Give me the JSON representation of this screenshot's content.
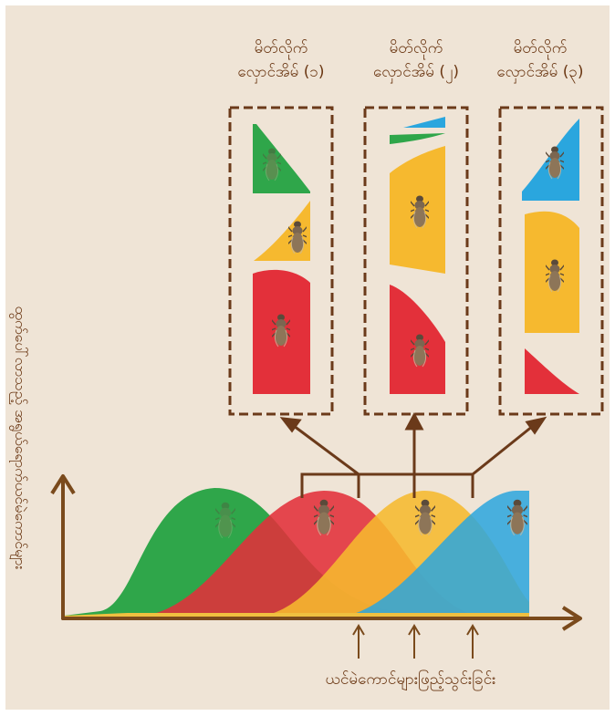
{
  "samples": [
    {
      "line1": "မိတ်လိုက်",
      "line2": "လှောင်အိမ် (၁)"
    },
    {
      "line1": "မိတ်လိုက်",
      "line2": "လှောင်အိမ် (၂)"
    },
    {
      "line1": "မိတ်လိုက်",
      "line2": "လှောင်အိမ် (၃)"
    }
  ],
  "x_axis_label": "ယင်မဲကောင်များဖြည့်သွင်းခြင်း",
  "y_axis_label": "ထွက်ပေါ်လာသည့် အရွယ်ရောက်ယင်မဲကောင်များ",
  "colors": {
    "green": "#2fa64a",
    "red": "#e3303a",
    "yellow": "#f6b92f",
    "blue": "#2aa6de",
    "border": "#6b3a1a"
  }
}
